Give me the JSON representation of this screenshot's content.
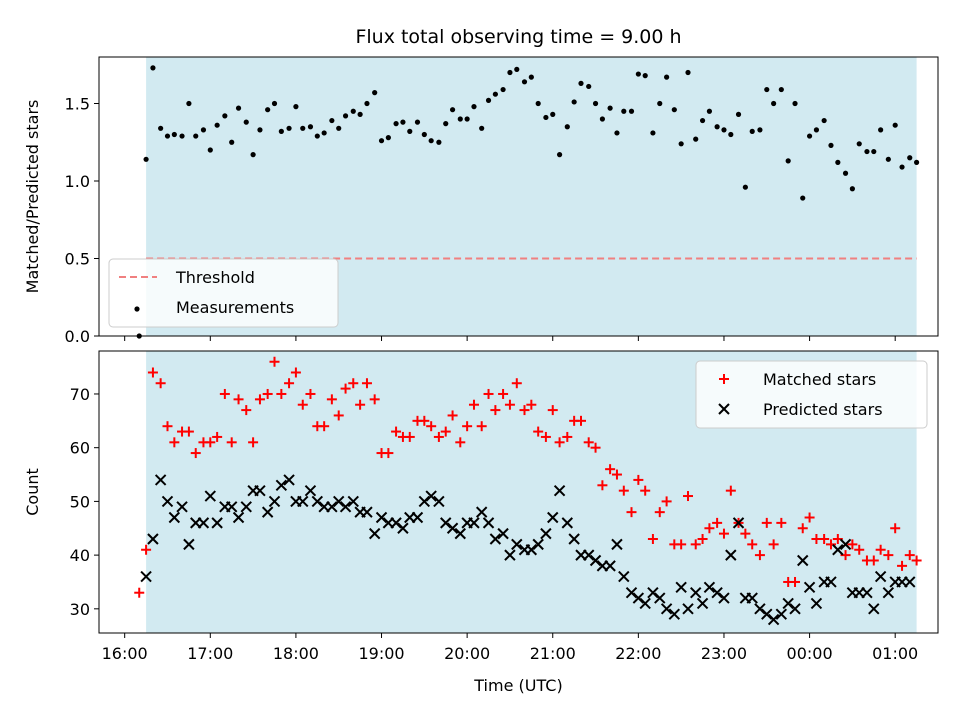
{
  "chart_data": [
    {
      "type": "scatter",
      "title": "Flux total observing time = 9.00 h",
      "ylabel": "Matched/Predicted stars",
      "xlabel": "",
      "ylim": [
        0,
        1.8
      ],
      "yticks": [
        "0.0",
        "0.5",
        "1.0",
        "1.5"
      ],
      "ytick_values": [
        0,
        0.5,
        1.0,
        1.5
      ],
      "xlim_hours": [
        15.7,
        25.5
      ],
      "shaded_span_hours": [
        16.25,
        25.25
      ],
      "shade_color": "#add8e6",
      "legend_position": "lower-left",
      "series": [
        {
          "name": "Threshold",
          "kind": "dashed-line",
          "color": "#f08080",
          "y": 0.5,
          "x_range_hours": [
            16.25,
            25.25
          ]
        },
        {
          "name": "Measurements",
          "kind": "dots",
          "color": "#000000",
          "x": [
            16.17,
            16.25,
            16.33,
            16.42,
            16.5,
            16.58,
            16.67,
            16.75,
            16.83,
            16.92,
            17.0,
            17.08,
            17.17,
            17.25,
            17.33,
            17.42,
            17.5,
            17.58,
            17.67,
            17.75,
            17.83,
            17.92,
            18.0,
            18.08,
            18.17,
            18.25,
            18.33,
            18.42,
            18.5,
            18.58,
            18.67,
            18.75,
            18.83,
            18.92,
            19.0,
            19.08,
            19.17,
            19.25,
            19.33,
            19.42,
            19.5,
            19.58,
            19.67,
            19.75,
            19.83,
            19.92,
            20.0,
            20.08,
            20.17,
            20.25,
            20.33,
            20.42,
            20.5,
            20.58,
            20.67,
            20.75,
            20.83,
            20.92,
            21.0,
            21.08,
            21.17,
            21.25,
            21.33,
            21.42,
            21.5,
            21.58,
            21.67,
            21.75,
            21.83,
            21.92,
            22.0,
            22.08,
            22.17,
            22.25,
            22.33,
            22.42,
            22.5,
            22.58,
            22.67,
            22.75,
            22.83,
            22.92,
            23.0,
            23.08,
            23.17,
            23.25,
            23.33,
            23.42,
            23.5,
            23.58,
            23.67,
            23.75,
            23.83,
            23.92,
            24.0,
            24.08,
            24.17,
            24.25,
            24.33,
            24.42,
            24.5,
            24.58,
            24.67,
            24.75,
            24.83,
            24.92,
            25.0,
            25.08,
            25.17,
            25.25
          ],
          "y": [
            0.0,
            1.14,
            1.73,
            1.34,
            1.29,
            1.3,
            1.29,
            1.5,
            1.29,
            1.33,
            1.2,
            1.36,
            1.42,
            1.25,
            1.47,
            1.38,
            1.17,
            1.33,
            1.46,
            1.5,
            1.32,
            1.34,
            1.48,
            1.34,
            1.35,
            1.29,
            1.31,
            1.39,
            1.34,
            1.42,
            1.45,
            1.43,
            1.5,
            1.57,
            1.26,
            1.28,
            1.37,
            1.38,
            1.32,
            1.38,
            1.3,
            1.26,
            1.25,
            1.37,
            1.46,
            1.4,
            1.4,
            1.48,
            1.34,
            1.52,
            1.56,
            1.59,
            1.7,
            1.72,
            1.64,
            1.67,
            1.5,
            1.41,
            1.43,
            1.17,
            1.35,
            1.51,
            1.63,
            1.61,
            1.5,
            1.4,
            1.47,
            1.31,
            1.45,
            1.45,
            1.69,
            1.68,
            1.31,
            1.5,
            1.67,
            1.46,
            1.24,
            1.7,
            1.27,
            1.39,
            1.45,
            1.35,
            1.33,
            1.3,
            1.43,
            0.96,
            1.32,
            1.33,
            1.59,
            1.5,
            1.59,
            1.13,
            1.5,
            0.89,
            1.29,
            1.33,
            1.39,
            1.23,
            1.12,
            1.05,
            0.95,
            1.24,
            1.19,
            1.19,
            1.33,
            1.14,
            1.36,
            1.09,
            1.15,
            1.12
          ]
        }
      ]
    },
    {
      "type": "scatter",
      "title": "",
      "ylabel": "Count",
      "xlabel": "Time (UTC)",
      "ylim": [
        25.5,
        78
      ],
      "yticks": [
        "30",
        "40",
        "50",
        "60",
        "70"
      ],
      "ytick_values": [
        30,
        40,
        50,
        60,
        70
      ],
      "xlim_hours": [
        15.7,
        25.5
      ],
      "xticks": [
        "16:00",
        "17:00",
        "18:00",
        "19:00",
        "20:00",
        "21:00",
        "22:00",
        "23:00",
        "00:00",
        "01:00"
      ],
      "xtick_hours": [
        16,
        17,
        18,
        19,
        20,
        21,
        22,
        23,
        24,
        25
      ],
      "shaded_span_hours": [
        16.25,
        25.25
      ],
      "shade_color": "#add8e6",
      "legend_position": "upper-right",
      "series": [
        {
          "name": "Matched stars",
          "kind": "plus",
          "color": "#ff0000",
          "x": [
            16.17,
            16.25,
            16.33,
            16.42,
            16.5,
            16.58,
            16.67,
            16.75,
            16.83,
            16.92,
            17.0,
            17.08,
            17.17,
            17.25,
            17.33,
            17.42,
            17.5,
            17.58,
            17.67,
            17.75,
            17.83,
            17.92,
            18.0,
            18.08,
            18.17,
            18.25,
            18.33,
            18.42,
            18.5,
            18.58,
            18.67,
            18.75,
            18.83,
            18.92,
            19.0,
            19.08,
            19.17,
            19.25,
            19.33,
            19.42,
            19.5,
            19.58,
            19.67,
            19.75,
            19.83,
            19.92,
            20.0,
            20.08,
            20.17,
            20.25,
            20.33,
            20.42,
            20.5,
            20.58,
            20.67,
            20.75,
            20.83,
            20.92,
            21.0,
            21.08,
            21.17,
            21.25,
            21.33,
            21.42,
            21.5,
            21.58,
            21.67,
            21.75,
            21.83,
            21.92,
            22.0,
            22.08,
            22.17,
            22.25,
            22.33,
            22.42,
            22.5,
            22.58,
            22.67,
            22.75,
            22.83,
            22.92,
            23.0,
            23.08,
            23.17,
            23.25,
            23.33,
            23.42,
            23.5,
            23.58,
            23.67,
            23.75,
            23.83,
            23.92,
            24.0,
            24.08,
            24.17,
            24.25,
            24.33,
            24.42,
            24.5,
            24.58,
            24.67,
            24.75,
            24.83,
            24.92,
            25.0,
            25.08,
            25.17,
            25.25
          ],
          "y": [
            33,
            41,
            74,
            72,
            64,
            61,
            63,
            63,
            59,
            61,
            61,
            62,
            70,
            61,
            69,
            67,
            61,
            69,
            70,
            76,
            70,
            72,
            74,
            68,
            70,
            64,
            64,
            69,
            66,
            71,
            72,
            68,
            72,
            69,
            59,
            59,
            63,
            62,
            62,
            65,
            65,
            64,
            62,
            63,
            66,
            61,
            64,
            68,
            64,
            70,
            67,
            70,
            68,
            72,
            67,
            68,
            63,
            62,
            67,
            61,
            62,
            65,
            65,
            61,
            60,
            53,
            56,
            55,
            52,
            48,
            54,
            52,
            43,
            48,
            50,
            42,
            42,
            51,
            42,
            43,
            45,
            46,
            44,
            52,
            46,
            44,
            42,
            40,
            46,
            42,
            46,
            35,
            35,
            45,
            47,
            43,
            43,
            42,
            43,
            40,
            42,
            41,
            39,
            39,
            41,
            40,
            45,
            38,
            40,
            39
          ]
        },
        {
          "name": "Predicted stars",
          "kind": "cross",
          "color": "#000000",
          "x": [
            16.17,
            16.25,
            16.33,
            16.42,
            16.5,
            16.58,
            16.67,
            16.75,
            16.83,
            16.92,
            17.0,
            17.08,
            17.17,
            17.25,
            17.33,
            17.42,
            17.5,
            17.58,
            17.67,
            17.75,
            17.83,
            17.92,
            18.0,
            18.08,
            18.17,
            18.25,
            18.33,
            18.42,
            18.5,
            18.58,
            18.67,
            18.75,
            18.83,
            18.92,
            19.0,
            19.08,
            19.17,
            19.25,
            19.33,
            19.42,
            19.5,
            19.58,
            19.67,
            19.75,
            19.83,
            19.92,
            20.0,
            20.08,
            20.17,
            20.25,
            20.33,
            20.42,
            20.5,
            20.58,
            20.67,
            20.75,
            20.83,
            20.92,
            21.0,
            21.08,
            21.17,
            21.25,
            21.33,
            21.42,
            21.5,
            21.58,
            21.67,
            21.75,
            21.83,
            21.92,
            22.0,
            22.08,
            22.17,
            22.25,
            22.33,
            22.42,
            22.5,
            22.58,
            22.67,
            22.75,
            22.83,
            22.92,
            23.0,
            23.08,
            23.17,
            23.25,
            23.33,
            23.42,
            23.5,
            23.58,
            23.67,
            23.75,
            23.83,
            23.92,
            24.0,
            24.08,
            24.17,
            24.25,
            24.33,
            24.42,
            24.5,
            24.58,
            24.67,
            24.75,
            24.83,
            24.92,
            25.0,
            25.08,
            25.17,
            25.25
          ],
          "y": [
            null,
            36,
            43,
            54,
            50,
            47,
            49,
            42,
            46,
            46,
            51,
            46,
            49,
            49,
            47,
            49,
            52,
            52,
            48,
            50,
            53,
            54,
            50,
            50,
            52,
            50,
            49,
            49,
            50,
            49,
            50,
            48,
            48,
            44,
            47,
            46,
            46,
            45,
            47,
            47,
            50,
            51,
            50,
            46,
            45,
            44,
            46,
            46,
            48,
            46,
            43,
            44,
            40,
            42,
            41,
            41,
            42,
            44,
            47,
            52,
            46,
            43,
            40,
            40,
            39,
            38,
            38,
            42,
            36,
            33,
            32,
            31,
            33,
            32,
            30,
            29,
            34,
            30,
            33,
            31,
            34,
            33,
            32,
            40,
            46,
            32,
            32,
            30,
            29,
            28,
            29,
            31,
            30,
            39,
            34,
            31,
            35,
            35,
            41,
            42,
            33,
            33,
            33,
            30,
            36,
            33,
            35,
            35,
            35,
            null
          ]
        }
      ]
    }
  ]
}
